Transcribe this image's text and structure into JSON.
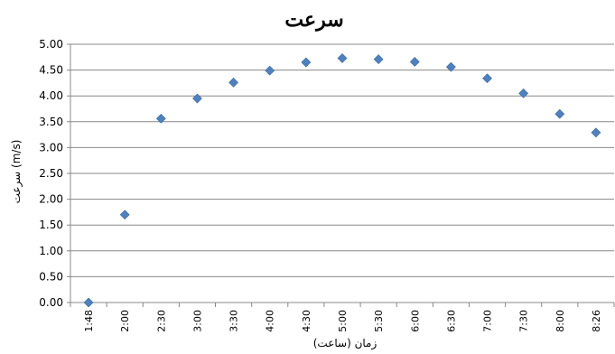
{
  "chart_data": {
    "type": "scatter",
    "title": "سرعت",
    "xlabel": "زمان (ساعت)",
    "ylabel": "سرعت (m/s)",
    "categories": [
      "1:48",
      "2:00",
      "2:30",
      "3:00",
      "3:30",
      "4:00",
      "4:30",
      "5:00",
      "5:30",
      "6:00",
      "6:30",
      "7:00",
      "7:30",
      "8:00",
      "8:26"
    ],
    "yticks": [
      "0.00",
      "0.50",
      "1.00",
      "1.50",
      "2.00",
      "2.50",
      "3.00",
      "3.50",
      "4.00",
      "4.50",
      "5.00"
    ],
    "ylim": [
      0,
      5
    ],
    "grid": true,
    "legend": "none",
    "marker": "diamond",
    "color": "#4f81bd",
    "series": [
      {
        "values": [
          0.0,
          1.7,
          3.56,
          3.95,
          4.26,
          4.49,
          4.65,
          4.73,
          4.71,
          4.66,
          4.56,
          4.34,
          4.05,
          3.65,
          3.29
        ]
      }
    ]
  }
}
